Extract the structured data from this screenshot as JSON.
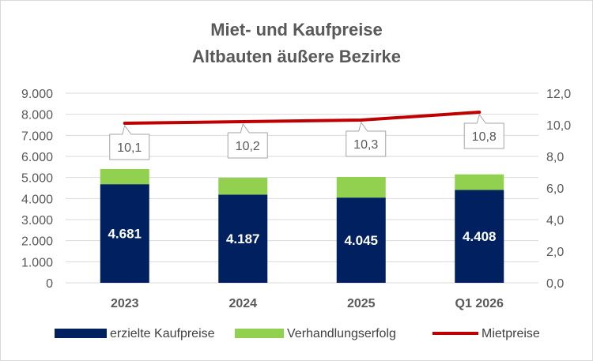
{
  "chart_data": {
    "type": "bar",
    "title_lines": [
      "Miet- und Kaufpreise",
      "Altbauten äußere Bezirke"
    ],
    "categories": [
      "2023",
      "2024",
      "2025",
      "Q1 2026"
    ],
    "series": [
      {
        "name": "erzielte Kaufpreise",
        "kind": "stacked-bar",
        "axis": "left",
        "color": "#002060",
        "values": [
          4681,
          4187,
          4045,
          4408
        ],
        "labels": [
          "4.681",
          "4.187",
          "4.045",
          "4.408"
        ]
      },
      {
        "name": "Verhandlungserfolg",
        "kind": "stacked-bar",
        "axis": "left",
        "color": "#92D050",
        "values": [
          720,
          800,
          980,
          740
        ]
      },
      {
        "name": "Mietpreise",
        "kind": "line",
        "axis": "right",
        "color": "#C00000",
        "values": [
          10.1,
          10.2,
          10.3,
          10.8
        ],
        "labels": [
          "10,1",
          "10,2",
          "10,3",
          "10,8"
        ]
      }
    ],
    "y_left": {
      "min": 0,
      "max": 9000,
      "step": 1000,
      "tick_labels": [
        "0",
        "1.000",
        "2.000",
        "3.000",
        "4.000",
        "5.000",
        "6.000",
        "7.000",
        "8.000",
        "9.000"
      ]
    },
    "y_right": {
      "min": 0,
      "max": 12,
      "step": 2,
      "tick_labels": [
        "0,0",
        "2,0",
        "4,0",
        "6,0",
        "8,0",
        "10,0",
        "12,0"
      ]
    },
    "grid": true,
    "legend_position": "bottom"
  }
}
